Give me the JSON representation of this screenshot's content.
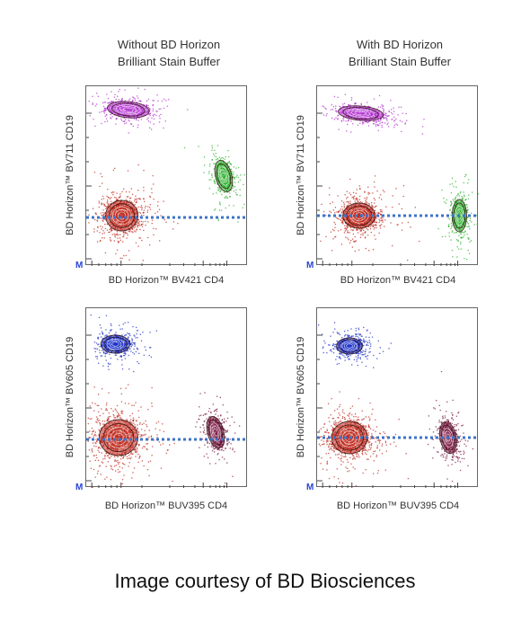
{
  "column_titles": [
    {
      "line1": "Without BD Horizon",
      "line2": "Brilliant Stain Buffer"
    },
    {
      "line1": "With BD Horizon",
      "line2": "Brilliant Stain Buffer"
    }
  ],
  "credit": "Image courtesy of BD Biosciences",
  "colors": {
    "cd19_top": "#b22fd0",
    "cd19_bottom": "#1a2fc8",
    "negative": "#c0281c",
    "cd4_top": "#2bb02b",
    "cd4_bottom": "#7a1440",
    "reference_line": "#3d74c9"
  },
  "chart_data": [
    {
      "type": "scatter",
      "xlabel": "BD Horizon™ BV421 CD4",
      "ylabel": "BD Horizon™ BV711 CD19",
      "axis_marker": "M",
      "xlim": [
        0,
        1
      ],
      "ylim": [
        0,
        1
      ],
      "grid": false,
      "reference_y": 0.27,
      "populations": [
        {
          "cx": 0.26,
          "cy": 0.87,
          "rx": 0.13,
          "ry": 0.045,
          "angle": -5,
          "color": "cd19_top",
          "count": 520
        },
        {
          "cx": 0.22,
          "cy": 0.28,
          "rx": 0.1,
          "ry": 0.085,
          "angle": 0,
          "color": "negative",
          "count": 900
        },
        {
          "cx": 0.85,
          "cy": 0.5,
          "rx": 0.05,
          "ry": 0.09,
          "angle": 15,
          "color": "cd4_top",
          "count": 420
        }
      ]
    },
    {
      "type": "scatter",
      "xlabel": "BD Horizon™ BV421 CD4",
      "ylabel": "BD Horizon™ BV711 CD19",
      "axis_marker": "M",
      "xlim": [
        0,
        1
      ],
      "ylim": [
        0,
        1
      ],
      "grid": false,
      "reference_y": 0.28,
      "populations": [
        {
          "cx": 0.27,
          "cy": 0.85,
          "rx": 0.14,
          "ry": 0.04,
          "angle": -5,
          "color": "cd19_top",
          "count": 520
        },
        {
          "cx": 0.26,
          "cy": 0.28,
          "rx": 0.1,
          "ry": 0.07,
          "angle": 0,
          "color": "negative",
          "count": 900
        },
        {
          "cx": 0.88,
          "cy": 0.28,
          "rx": 0.045,
          "ry": 0.09,
          "angle": 0,
          "color": "cd4_top",
          "count": 420
        }
      ]
    },
    {
      "type": "scatter",
      "xlabel": "BD Horizon™ BUV395 CD4",
      "ylabel": "BD Horizon™ BV605 CD19",
      "axis_marker": "M",
      "xlim": [
        0,
        1
      ],
      "ylim": [
        0,
        1
      ],
      "grid": false,
      "reference_y": 0.27,
      "populations": [
        {
          "cx": 0.18,
          "cy": 0.8,
          "rx": 0.09,
          "ry": 0.05,
          "angle": 0,
          "color": "cd19_bottom",
          "count": 520
        },
        {
          "cx": 0.2,
          "cy": 0.28,
          "rx": 0.12,
          "ry": 0.1,
          "angle": 0,
          "color": "negative",
          "count": 1000
        },
        {
          "cx": 0.8,
          "cy": 0.31,
          "rx": 0.05,
          "ry": 0.09,
          "angle": 15,
          "color": "cd4_bottom",
          "count": 420
        }
      ]
    },
    {
      "type": "scatter",
      "xlabel": "BD Horizon™ BUV395 CD4",
      "ylabel": "BD Horizon™ BV605 CD19",
      "axis_marker": "M",
      "xlim": [
        0,
        1
      ],
      "ylim": [
        0,
        1
      ],
      "grid": false,
      "reference_y": 0.28,
      "populations": [
        {
          "cx": 0.2,
          "cy": 0.79,
          "rx": 0.08,
          "ry": 0.045,
          "angle": 0,
          "color": "cd19_bottom",
          "count": 520
        },
        {
          "cx": 0.2,
          "cy": 0.28,
          "rx": 0.11,
          "ry": 0.09,
          "angle": 0,
          "color": "negative",
          "count": 1000
        },
        {
          "cx": 0.81,
          "cy": 0.28,
          "rx": 0.05,
          "ry": 0.09,
          "angle": 10,
          "color": "cd4_bottom",
          "count": 420
        }
      ]
    }
  ]
}
